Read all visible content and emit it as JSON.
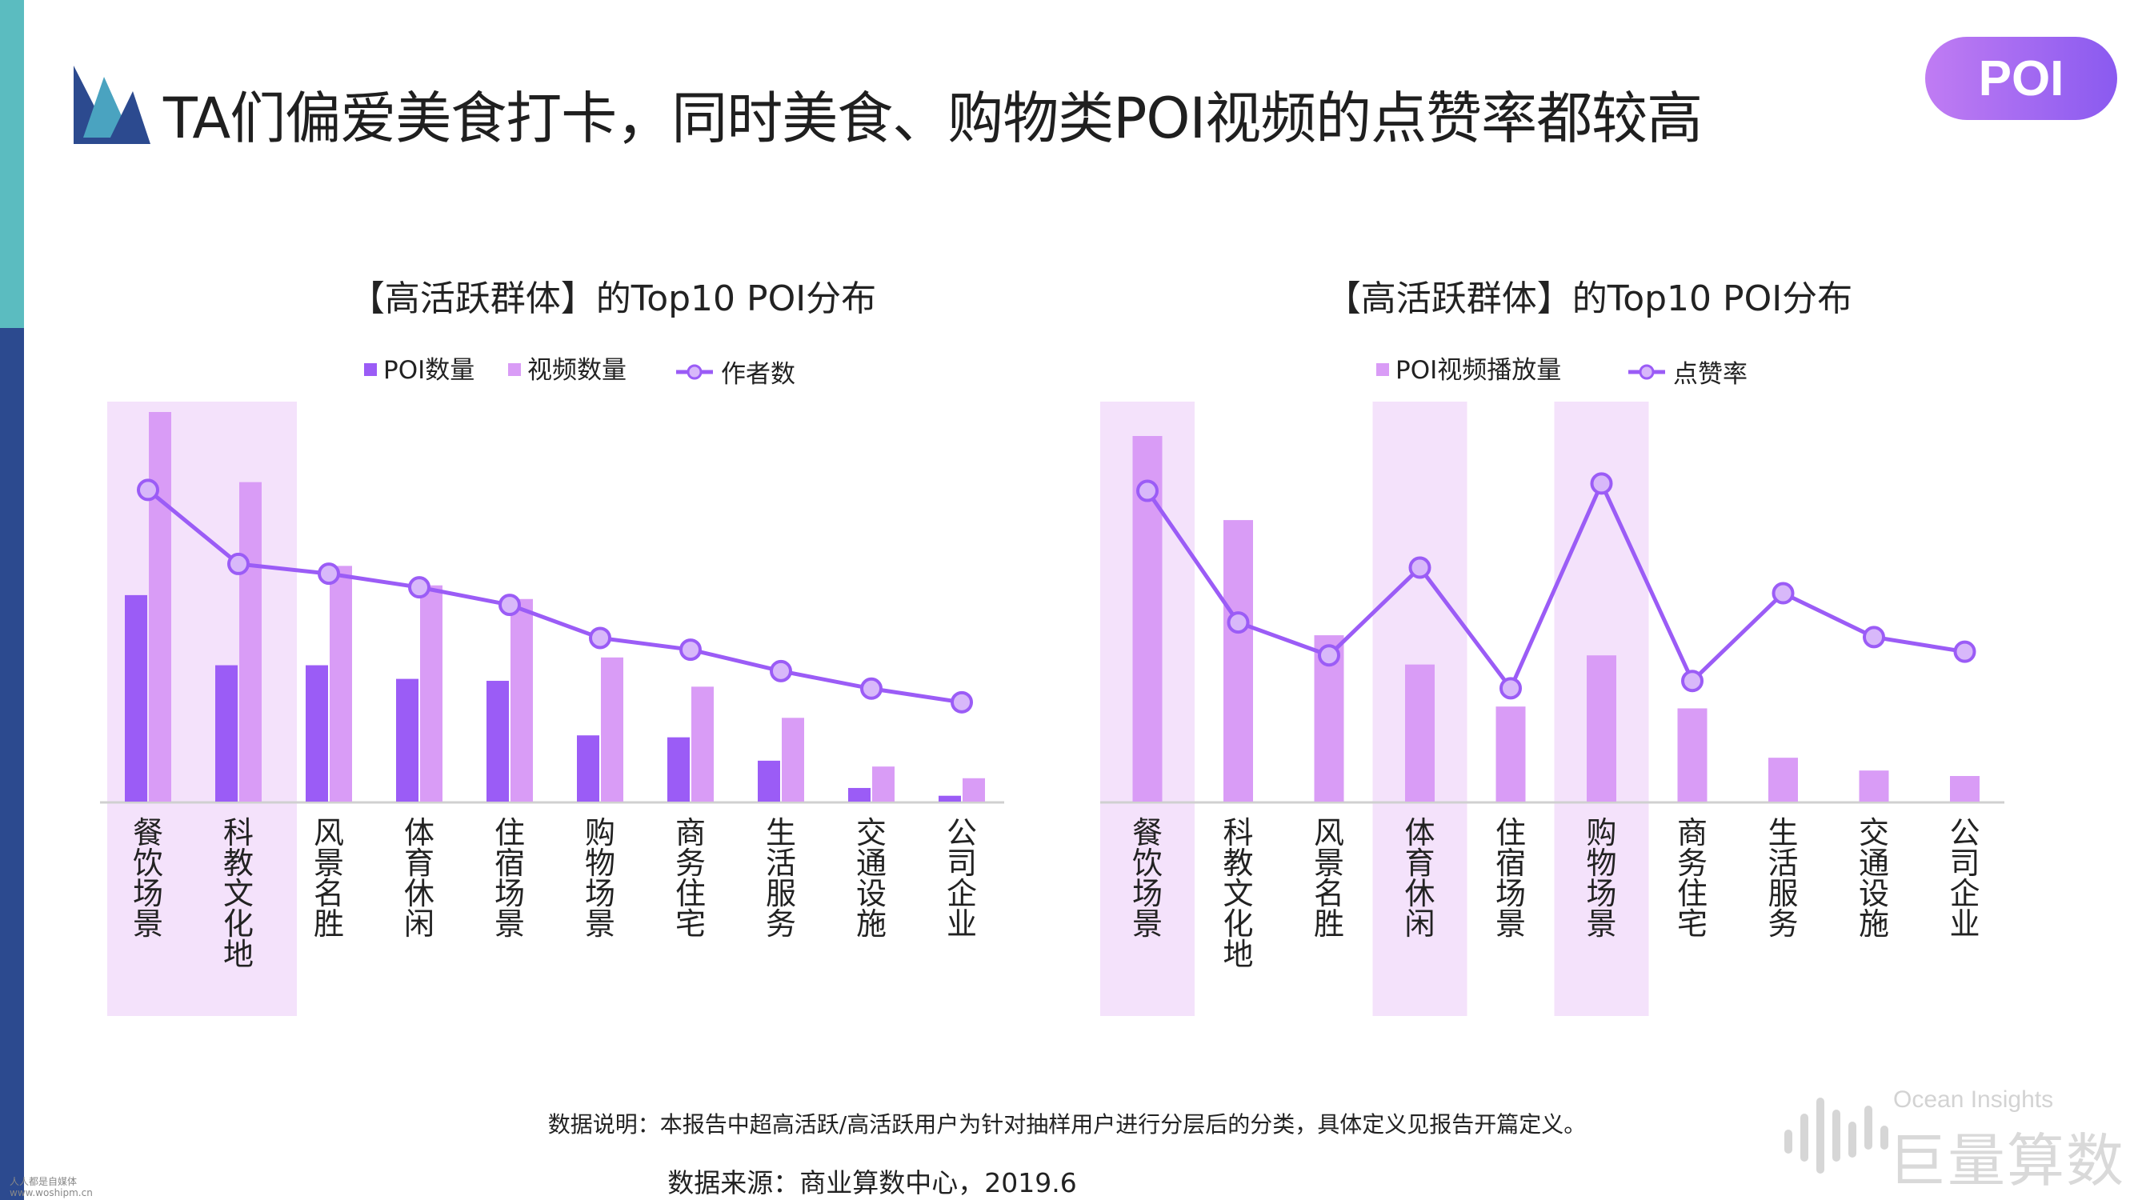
{
  "page": {
    "title": "TA们偏爱美食打卡，同时美食、购物类POI视频的点赞率都较高",
    "badge": "POI",
    "note": "数据说明：本报告中超高活跃/高活跃用户为针对抽样用户进行分层后的分类，具体定义见报告开篇定义。",
    "source": "数据来源：商业算数中心，2019.6",
    "brand_en": "Ocean Insights",
    "brand_cn": "巨量算数",
    "watermark": [
      "人人都是自媒体",
      "www.woshipm.cn"
    ]
  },
  "colors": {
    "poi_count": "#9b5cf6",
    "video_count": "#d99cf6",
    "author_line": "#9b5cf6",
    "highlight": "#f4e2fb",
    "axis": "#d0d0d0"
  },
  "chart_data": [
    {
      "type": "bar",
      "title": "【高活跃群体】的Top10 POI分布",
      "categories": [
        "餐饮场景",
        "科教文化地",
        "风景名胜",
        "体育休闲",
        "住宿场景",
        "购物场景",
        "商务住宅",
        "生活服务",
        "交通设施",
        "公司企业"
      ],
      "series": [
        {
          "name": "POI数量",
          "kind": "bar",
          "values": [
            53,
            35,
            35,
            31.5,
            31,
            17,
            16.5,
            10.5,
            3.5,
            1.5
          ]
        },
        {
          "name": "视频数量",
          "kind": "bar",
          "values": [
            100,
            82,
            60.5,
            55.5,
            52,
            37,
            29.5,
            21.5,
            9,
            6
          ]
        },
        {
          "name": "作者数",
          "kind": "line",
          "values": [
            80,
            61,
            58.5,
            55,
            50.5,
            42,
            39,
            33.5,
            29,
            25.5
          ]
        }
      ],
      "highlight_categories": [
        "餐饮场景",
        "科教文化地"
      ],
      "ylim": [
        0,
        100
      ]
    },
    {
      "type": "bar",
      "title": "【高活跃群体】的Top10 POI分布",
      "categories": [
        "餐饮场景",
        "科教文化地",
        "风景名胜",
        "体育休闲",
        "住宿场景",
        "购物场景",
        "商务住宅",
        "生活服务",
        "交通设施",
        "公司企业"
      ],
      "series": [
        {
          "name": "POI视频播放量",
          "kind": "bar",
          "values": [
            100,
            77,
            45.5,
            37.5,
            26,
            40,
            25.5,
            12,
            8.5,
            7
          ]
        },
        {
          "name": "点赞率",
          "kind": "line",
          "values": [
            85,
            49,
            40,
            64,
            31,
            87,
            33,
            57,
            45,
            41
          ]
        }
      ],
      "highlight_categories": [
        "餐饮场景",
        "体育休闲",
        "购物场景"
      ],
      "ylim": [
        0,
        100
      ]
    }
  ]
}
